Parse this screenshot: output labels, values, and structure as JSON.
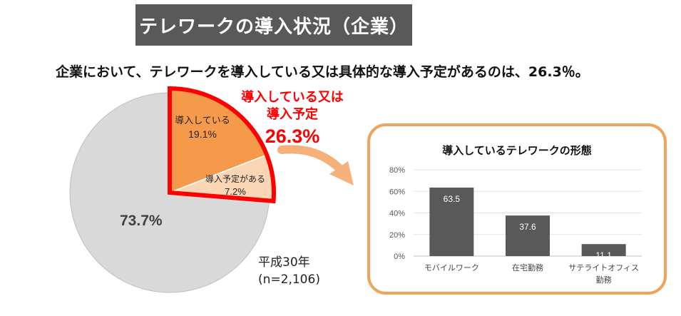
{
  "header": {
    "title": "テレワークの導入状況（企業）",
    "subtitle": "企業において、テレワークを導入している又は具体的な導入予定があるのは、26.3％。"
  },
  "callout": {
    "line1": "導入している又は",
    "line2": "導入予定",
    "percent": "26.3%"
  },
  "pie_meta": {
    "year": "平成30年",
    "n": "(n=2,106)"
  },
  "colors": {
    "introduced": "#f59a4a",
    "planned": "#fbd6b5",
    "other": "#d9d9d9",
    "highlight_border": "#ff0000",
    "bar": "#595959",
    "panel_border": "#f0a35a",
    "arrow": "#f6b07a"
  },
  "chart_data": [
    {
      "type": "pie",
      "title": "",
      "slices": [
        {
          "label": "導入している",
          "value": 19.1,
          "value_label": "19.1%"
        },
        {
          "label": "導入予定がある",
          "value": 7.2,
          "value_label": "7.2%"
        },
        {
          "label": "",
          "value": 73.7,
          "value_label": "73.7%"
        }
      ]
    },
    {
      "type": "bar",
      "title": "導入しているテレワークの形態",
      "categories": [
        "モバイルワーク",
        "在宅勤務",
        "サテライトオフィス勤務"
      ],
      "category_lines": [
        [
          "モバイルワーク"
        ],
        [
          "在宅勤務"
        ],
        [
          "サテライトオフィス",
          "勤務"
        ]
      ],
      "values": [
        63.5,
        37.6,
        11.1
      ],
      "data_labels": [
        "63.5",
        "37.6",
        "11.1"
      ],
      "yticks": [
        "0%",
        "20%",
        "40%",
        "60%",
        "80%"
      ],
      "ylim": [
        0,
        80
      ],
      "grid": true,
      "xlabel": "",
      "ylabel": ""
    }
  ]
}
